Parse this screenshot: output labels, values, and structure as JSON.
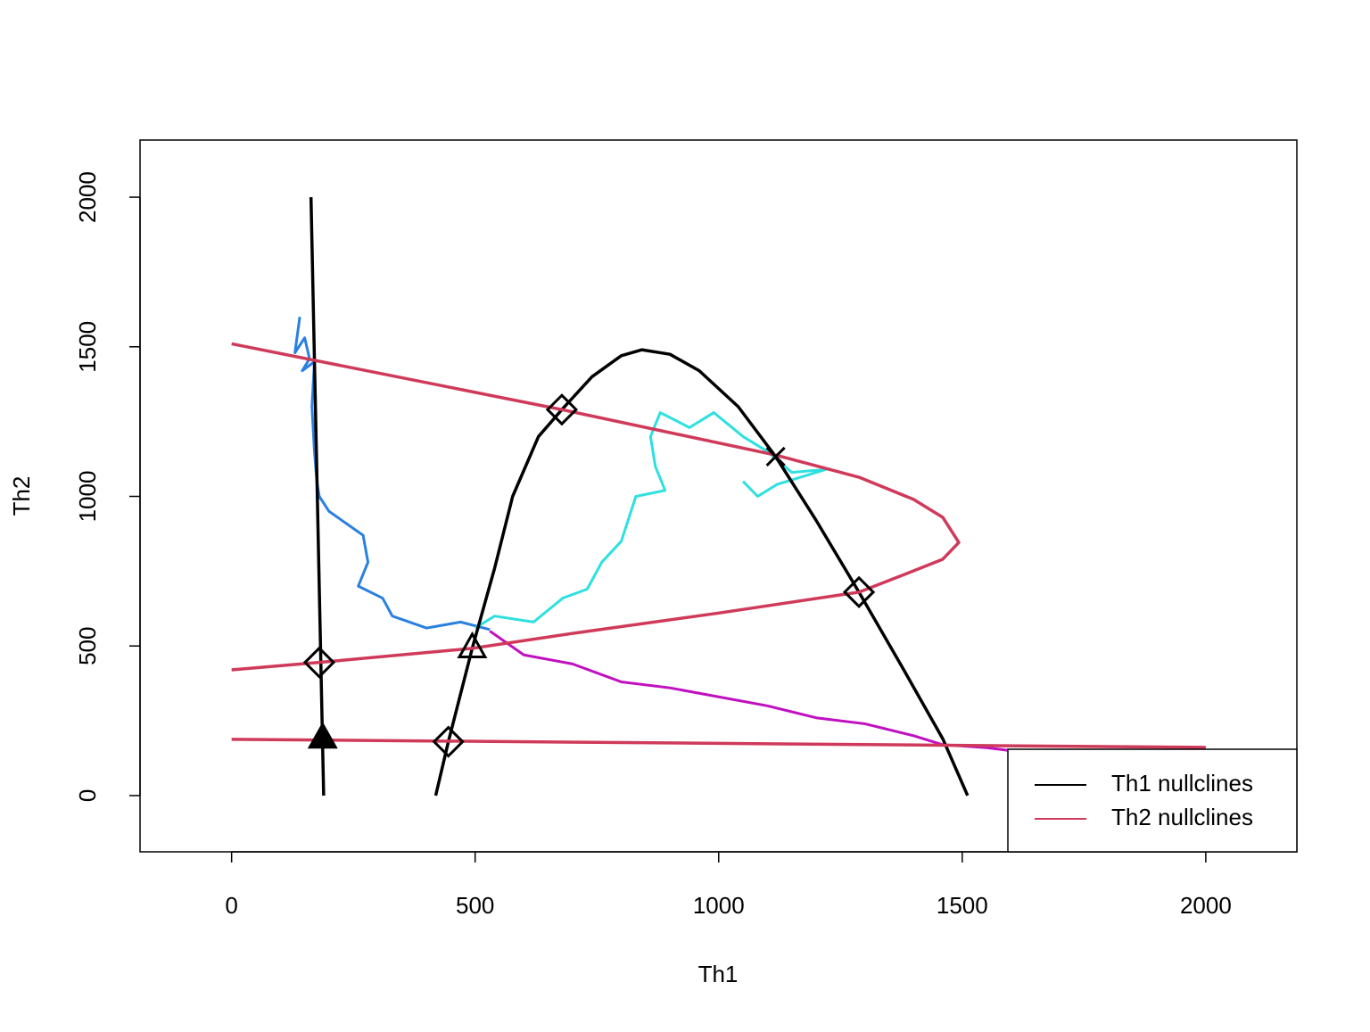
{
  "chart_data": {
    "type": "line",
    "x_label": "Th1",
    "y_label": "Th2",
    "xlim": [
      -188,
      2187
    ],
    "ylim": [
      -188,
      2191
    ],
    "xticks": [
      0,
      500,
      1000,
      1500,
      2000
    ],
    "yticks": [
      0,
      500,
      1000,
      1500,
      2000
    ],
    "legend": "bottom-right",
    "series": [
      {
        "name": "Th1 nullclines",
        "color": "#000000",
        "x": [
          163,
          189,
          null,
          419,
          445,
          494,
          540,
          577,
          630,
          678,
          740,
          800,
          842,
          900,
          960,
          1040,
          1117,
          1200,
          1288,
          1380,
          1460,
          1511
        ],
        "values": [
          2000,
          0,
          null,
          0,
          180,
          492,
          760,
          1000,
          1200,
          1290,
          1400,
          1470,
          1490,
          1475,
          1420,
          1300,
          1133,
          920,
          680,
          420,
          190,
          0
        ]
      },
      {
        "name": "Th2 nullclines",
        "color": "#d03a5a",
        "x": [
          0,
          678,
          1117,
          1288,
          1400,
          1460,
          1493,
          1460,
          1400,
          1288,
          1000,
          700,
          494,
          180,
          0,
          null,
          0,
          2000
        ],
        "values": [
          1510,
          1290,
          1138,
          1064,
          990,
          930,
          846,
          790,
          751,
          680,
          610,
          542,
          492,
          445,
          420,
          null,
          188,
          161
        ]
      }
    ],
    "trajectories": [
      {
        "color": "#2a80e0",
        "x": [
          140,
          130,
          150,
          160,
          145,
          170,
          165,
          170,
          175,
          180,
          200,
          270,
          280,
          260,
          310,
          330,
          400,
          470,
          530
        ],
        "values": [
          1600,
          1480,
          1530,
          1460,
          1420,
          1450,
          1300,
          1150,
          1050,
          1000,
          950,
          870,
          780,
          700,
          660,
          600,
          560,
          580,
          555
        ]
      },
      {
        "color": "#2ee0e0",
        "x": [
          500,
          540,
          620,
          680,
          730,
          760,
          800,
          830,
          890,
          870,
          860,
          880,
          940,
          990,
          1050,
          1100,
          1150,
          1220,
          1120,
          1080,
          1050
        ],
        "values": [
          560,
          600,
          580,
          660,
          690,
          780,
          850,
          1000,
          1020,
          1100,
          1200,
          1280,
          1230,
          1280,
          1200,
          1150,
          1080,
          1090,
          1040,
          1000,
          1050
        ]
      },
      {
        "color": "#c010c0",
        "x": [
          530,
          600,
          700,
          800,
          900,
          1000,
          1100,
          1200,
          1300,
          1400,
          1460,
          1550,
          1600
        ],
        "values": [
          550,
          470,
          440,
          380,
          360,
          330,
          300,
          260,
          240,
          200,
          170,
          160,
          150
        ]
      }
    ],
    "points": [
      {
        "x": 180,
        "y": 445,
        "shape": "diamond"
      },
      {
        "x": 678,
        "y": 1290,
        "shape": "diamond"
      },
      {
        "x": 1288,
        "y": 680,
        "shape": "diamond"
      },
      {
        "x": 445,
        "y": 180,
        "shape": "diamond"
      },
      {
        "x": 494,
        "y": 492,
        "shape": "triangle"
      },
      {
        "x": 187,
        "y": 190,
        "shape": "filled-triangle"
      },
      {
        "x": 1117,
        "y": 1133,
        "shape": "cross"
      }
    ]
  }
}
